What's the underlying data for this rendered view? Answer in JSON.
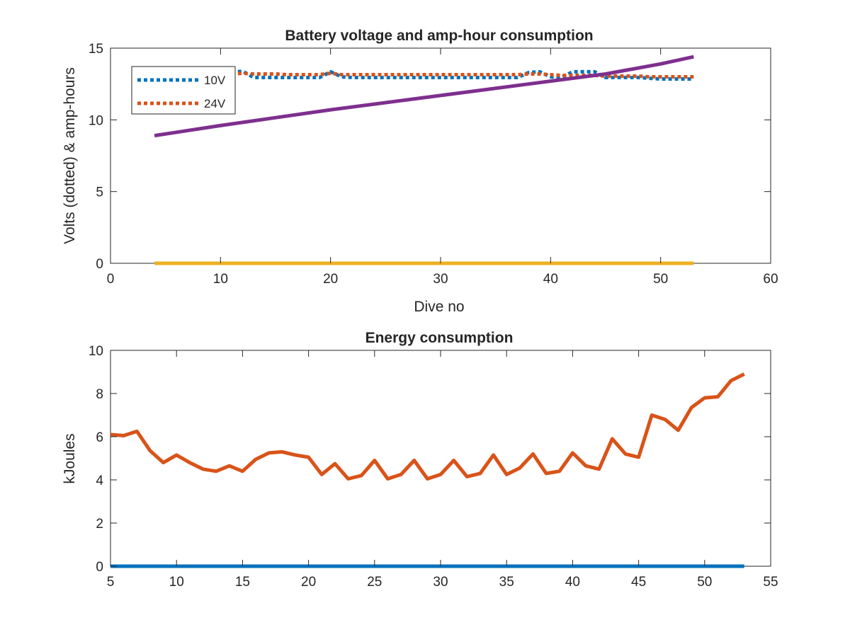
{
  "chart_data": [
    {
      "type": "line",
      "title": "Battery voltage and amp-hour consumption",
      "xlabel": "Dive no",
      "ylabel": "Volts (dotted) & amp-hours",
      "xlim": [
        0,
        60
      ],
      "ylim": [
        0,
        15
      ],
      "xticks": [
        0,
        10,
        20,
        30,
        40,
        50,
        60
      ],
      "yticks": [
        0,
        5,
        10,
        15
      ],
      "grid": false,
      "legend_position": "top-left",
      "series": [
        {
          "name": "10V",
          "color": "#0072BD",
          "style": "dotted",
          "x": [
            11,
            12,
            13,
            14,
            15,
            16,
            17,
            18,
            19,
            20,
            21,
            22,
            23,
            24,
            25,
            26,
            27,
            28,
            29,
            30,
            31,
            32,
            33,
            34,
            35,
            36,
            37,
            38,
            39,
            40,
            41,
            42,
            43,
            44,
            45,
            46,
            47,
            48,
            49,
            50,
            51,
            52,
            53
          ],
          "y": [
            13.3,
            13.4,
            12.95,
            12.95,
            12.95,
            12.95,
            12.95,
            12.95,
            12.95,
            13.35,
            13.0,
            12.95,
            12.95,
            12.95,
            12.95,
            12.95,
            12.95,
            12.95,
            12.95,
            12.95,
            12.95,
            12.95,
            12.95,
            12.95,
            12.95,
            12.95,
            12.95,
            13.3,
            13.35,
            13.0,
            12.95,
            13.35,
            13.35,
            13.35,
            12.95,
            12.95,
            12.95,
            12.95,
            12.9,
            12.85,
            12.85,
            12.85,
            12.85
          ]
        },
        {
          "name": "24V",
          "color": "#D95319",
          "style": "dotted",
          "x": [
            11,
            12,
            13,
            14,
            15,
            16,
            17,
            18,
            19,
            20,
            21,
            22,
            23,
            24,
            25,
            26,
            27,
            28,
            29,
            30,
            31,
            32,
            33,
            34,
            35,
            36,
            37,
            38,
            39,
            40,
            41,
            42,
            43,
            44,
            45,
            46,
            47,
            48,
            49,
            50,
            51,
            52,
            53
          ],
          "y": [
            13.2,
            13.25,
            13.2,
            13.2,
            13.2,
            13.15,
            13.15,
            13.15,
            13.15,
            13.25,
            13.15,
            13.15,
            13.15,
            13.15,
            13.15,
            13.15,
            13.15,
            13.15,
            13.15,
            13.15,
            13.15,
            13.15,
            13.15,
            13.15,
            13.15,
            13.15,
            13.15,
            13.2,
            13.2,
            13.15,
            13.1,
            13.1,
            13.1,
            13.1,
            13.05,
            13.05,
            13.05,
            13.05,
            13.0,
            13.0,
            13.0,
            13.0,
            13.0
          ]
        },
        {
          "color": "#7E2F8E",
          "style": "solid",
          "x": [
            4,
            10,
            20,
            30,
            40,
            45,
            50,
            53
          ],
          "y": [
            8.9,
            9.6,
            10.7,
            11.7,
            12.7,
            13.2,
            13.9,
            14.4
          ]
        },
        {
          "color": "#EDB120",
          "style": "solid",
          "x": [
            4,
            53
          ],
          "y": [
            0,
            0
          ]
        }
      ]
    },
    {
      "type": "line",
      "title": "Energy consumption",
      "xlabel": "",
      "ylabel": "kJoules",
      "xlim": [
        5,
        55
      ],
      "ylim": [
        0,
        10
      ],
      "xticks": [
        5,
        10,
        15,
        20,
        25,
        30,
        35,
        40,
        45,
        50,
        55
      ],
      "yticks": [
        0,
        2,
        4,
        6,
        8,
        10
      ],
      "grid": false,
      "series": [
        {
          "color": "#0072BD",
          "style": "solid",
          "x": [
            5,
            53
          ],
          "y": [
            0,
            0
          ]
        },
        {
          "color": "#D95319",
          "style": "solid",
          "x": [
            5,
            6,
            7,
            8,
            9,
            10,
            11,
            12,
            13,
            14,
            15,
            16,
            17,
            18,
            19,
            20,
            21,
            22,
            23,
            24,
            25,
            26,
            27,
            28,
            29,
            30,
            31,
            32,
            33,
            34,
            35,
            36,
            37,
            38,
            39,
            40,
            41,
            42,
            43,
            44,
            45,
            46,
            47,
            48,
            49,
            50,
            51,
            52,
            53
          ],
          "y": [
            6.1,
            6.05,
            6.25,
            5.35,
            4.8,
            5.15,
            4.8,
            4.5,
            4.4,
            4.65,
            4.4,
            4.95,
            5.25,
            5.3,
            5.15,
            5.05,
            4.25,
            4.75,
            4.05,
            4.2,
            4.9,
            4.05,
            4.25,
            4.9,
            4.05,
            4.25,
            4.9,
            4.15,
            4.3,
            5.15,
            4.25,
            4.55,
            5.2,
            4.3,
            4.4,
            5.25,
            4.65,
            4.5,
            5.9,
            5.2,
            5.05,
            7.0,
            6.8,
            6.3,
            7.35,
            7.8,
            7.85,
            8.6,
            8.9
          ]
        }
      ]
    }
  ]
}
